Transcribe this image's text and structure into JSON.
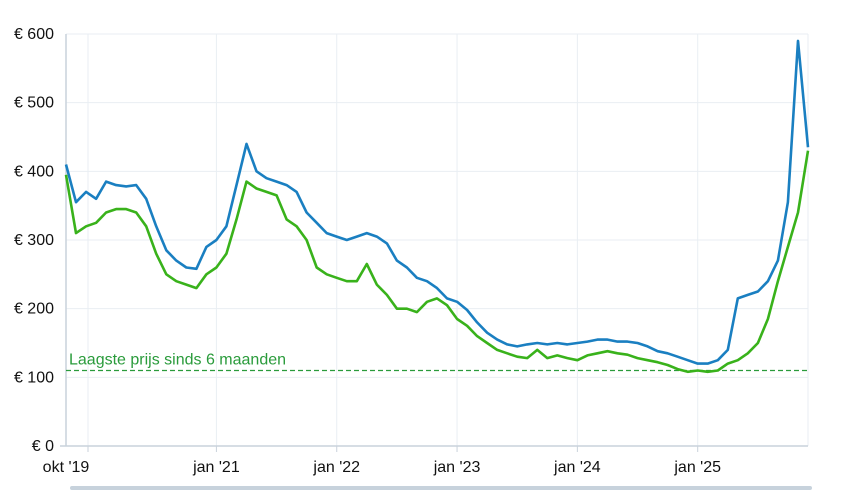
{
  "chart_data": {
    "type": "line",
    "x_start": "2019-10",
    "x_end": "2025-12",
    "x_ticks": [
      {
        "label": "okt '19",
        "date": "2019-10"
      },
      {
        "label": "jan '21",
        "date": "2021-01"
      },
      {
        "label": "jan '22",
        "date": "2022-01"
      },
      {
        "label": "jan '23",
        "date": "2023-01"
      },
      {
        "label": "jan '24",
        "date": "2024-01"
      },
      {
        "label": "jan '25",
        "date": "2025-01"
      }
    ],
    "y_ticks": [
      "€ 0",
      "€ 100",
      "€ 200",
      "€ 300",
      "€ 400",
      "€ 500",
      "€ 600"
    ],
    "ylim": [
      0,
      600
    ],
    "grid": true,
    "series": [
      {
        "color": "#1a7fc1",
        "points": [
          [
            "2019-10",
            410
          ],
          [
            "2019-11",
            355
          ],
          [
            "2019-12",
            370
          ],
          [
            "2020-01",
            360
          ],
          [
            "2020-02",
            385
          ],
          [
            "2020-03",
            380
          ],
          [
            "2020-04",
            378
          ],
          [
            "2020-05",
            380
          ],
          [
            "2020-06",
            360
          ],
          [
            "2020-07",
            320
          ],
          [
            "2020-08",
            285
          ],
          [
            "2020-09",
            270
          ],
          [
            "2020-10",
            260
          ],
          [
            "2020-11",
            258
          ],
          [
            "2020-12",
            290
          ],
          [
            "2021-01",
            300
          ],
          [
            "2021-02",
            320
          ],
          [
            "2021-03",
            380
          ],
          [
            "2021-04",
            440
          ],
          [
            "2021-05",
            400
          ],
          [
            "2021-06",
            390
          ],
          [
            "2021-07",
            385
          ],
          [
            "2021-08",
            380
          ],
          [
            "2021-09",
            370
          ],
          [
            "2021-10",
            340
          ],
          [
            "2021-11",
            325
          ],
          [
            "2021-12",
            310
          ],
          [
            "2022-01",
            305
          ],
          [
            "2022-02",
            300
          ],
          [
            "2022-03",
            305
          ],
          [
            "2022-04",
            310
          ],
          [
            "2022-05",
            305
          ],
          [
            "2022-06",
            295
          ],
          [
            "2022-07",
            270
          ],
          [
            "2022-08",
            260
          ],
          [
            "2022-09",
            245
          ],
          [
            "2022-10",
            240
          ],
          [
            "2022-11",
            230
          ],
          [
            "2022-12",
            215
          ],
          [
            "2023-01",
            210
          ],
          [
            "2023-02",
            198
          ],
          [
            "2023-03",
            180
          ],
          [
            "2023-04",
            165
          ],
          [
            "2023-05",
            155
          ],
          [
            "2023-06",
            148
          ],
          [
            "2023-07",
            145
          ],
          [
            "2023-08",
            148
          ],
          [
            "2023-09",
            150
          ],
          [
            "2023-10",
            148
          ],
          [
            "2023-11",
            150
          ],
          [
            "2023-12",
            148
          ],
          [
            "2024-01",
            150
          ],
          [
            "2024-02",
            152
          ],
          [
            "2024-03",
            155
          ],
          [
            "2024-04",
            155
          ],
          [
            "2024-05",
            152
          ],
          [
            "2024-06",
            152
          ],
          [
            "2024-07",
            150
          ],
          [
            "2024-08",
            145
          ],
          [
            "2024-09",
            138
          ],
          [
            "2024-10",
            135
          ],
          [
            "2024-11",
            130
          ],
          [
            "2024-12",
            125
          ],
          [
            "2025-01",
            120
          ],
          [
            "2025-02",
            120
          ],
          [
            "2025-03",
            125
          ],
          [
            "2025-04",
            140
          ],
          [
            "2025-05",
            215
          ],
          [
            "2025-06",
            220
          ],
          [
            "2025-07",
            225
          ],
          [
            "2025-08",
            240
          ],
          [
            "2025-09",
            270
          ],
          [
            "2025-10",
            355
          ],
          [
            "2025-11",
            590
          ],
          [
            "2025-12",
            435
          ]
        ]
      },
      {
        "color": "#39b21b",
        "points": [
          [
            "2019-10",
            395
          ],
          [
            "2019-11",
            310
          ],
          [
            "2019-12",
            320
          ],
          [
            "2020-01",
            325
          ],
          [
            "2020-02",
            340
          ],
          [
            "2020-03",
            345
          ],
          [
            "2020-04",
            345
          ],
          [
            "2020-05",
            340
          ],
          [
            "2020-06",
            320
          ],
          [
            "2020-07",
            280
          ],
          [
            "2020-08",
            250
          ],
          [
            "2020-09",
            240
          ],
          [
            "2020-10",
            235
          ],
          [
            "2020-11",
            230
          ],
          [
            "2020-12",
            250
          ],
          [
            "2021-01",
            260
          ],
          [
            "2021-02",
            280
          ],
          [
            "2021-03",
            330
          ],
          [
            "2021-04",
            385
          ],
          [
            "2021-05",
            375
          ],
          [
            "2021-06",
            370
          ],
          [
            "2021-07",
            365
          ],
          [
            "2021-08",
            330
          ],
          [
            "2021-09",
            320
          ],
          [
            "2021-10",
            300
          ],
          [
            "2021-11",
            260
          ],
          [
            "2021-12",
            250
          ],
          [
            "2022-01",
            245
          ],
          [
            "2022-02",
            240
          ],
          [
            "2022-03",
            240
          ],
          [
            "2022-04",
            265
          ],
          [
            "2022-05",
            235
          ],
          [
            "2022-06",
            220
          ],
          [
            "2022-07",
            200
          ],
          [
            "2022-08",
            200
          ],
          [
            "2022-09",
            195
          ],
          [
            "2022-10",
            210
          ],
          [
            "2022-11",
            215
          ],
          [
            "2022-12",
            205
          ],
          [
            "2023-01",
            185
          ],
          [
            "2023-02",
            175
          ],
          [
            "2023-03",
            160
          ],
          [
            "2023-04",
            150
          ],
          [
            "2023-05",
            140
          ],
          [
            "2023-06",
            135
          ],
          [
            "2023-07",
            130
          ],
          [
            "2023-08",
            128
          ],
          [
            "2023-09",
            140
          ],
          [
            "2023-10",
            128
          ],
          [
            "2023-11",
            132
          ],
          [
            "2023-12",
            128
          ],
          [
            "2024-01",
            125
          ],
          [
            "2024-02",
            132
          ],
          [
            "2024-03",
            135
          ],
          [
            "2024-04",
            138
          ],
          [
            "2024-05",
            135
          ],
          [
            "2024-06",
            133
          ],
          [
            "2024-07",
            128
          ],
          [
            "2024-08",
            125
          ],
          [
            "2024-09",
            122
          ],
          [
            "2024-10",
            118
          ],
          [
            "2024-11",
            112
          ],
          [
            "2024-12",
            108
          ],
          [
            "2025-01",
            110
          ],
          [
            "2025-02",
            108
          ],
          [
            "2025-03",
            110
          ],
          [
            "2025-04",
            120
          ],
          [
            "2025-05",
            125
          ],
          [
            "2025-06",
            135
          ],
          [
            "2025-07",
            150
          ],
          [
            "2025-08",
            185
          ],
          [
            "2025-09",
            240
          ],
          [
            "2025-10",
            290
          ],
          [
            "2025-11",
            340
          ],
          [
            "2025-12",
            430
          ]
        ]
      }
    ],
    "reference_line": {
      "value": 110,
      "label": "Laagste prijs sinds 6 maanden",
      "color": "#2a9b3b"
    }
  }
}
